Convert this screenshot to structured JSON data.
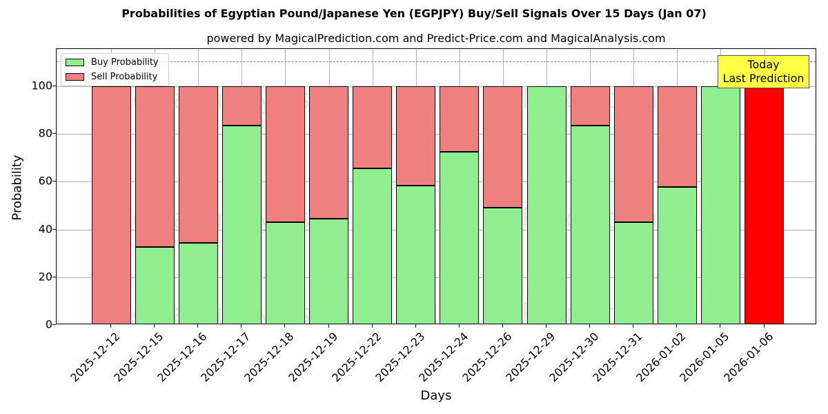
{
  "header": {
    "title": "Probabilities of Egyptian Pound/Japanese Yen (EGPJPY) Buy/Sell Signals Over 15 Days (Jan 07)",
    "subtitle": "powered by MagicalPrediction.com and Predict-Price.com and MagicalAnalysis.com"
  },
  "legend": {
    "buy_label": "Buy Probability",
    "sell_label": "Sell Probability"
  },
  "annotation": {
    "line1": "Today",
    "line2": "Last Prediction"
  },
  "watermarks": [
    "MagicalAnalysis.com",
    "MagicalPrediction.com"
  ],
  "colors": {
    "buy": "#90ee90",
    "sell": "#f08080",
    "today": "#ff0000",
    "annotation_bg": "#ffff44"
  },
  "chart_data": {
    "type": "bar",
    "stacked": true,
    "title": "Probabilities of Egyptian Pound/Japanese Yen (EGPJPY) Buy/Sell Signals Over 15 Days (Jan 07)",
    "subtitle": "powered by MagicalPrediction.com and Predict-Price.com and MagicalAnalysis.com",
    "xlabel": "Days",
    "ylabel": "Probability",
    "ylim": [
      0,
      115
    ],
    "yticks": [
      0,
      20,
      40,
      60,
      80,
      100
    ],
    "grid": true,
    "legend_position": "upper left",
    "reference_line": {
      "y": 110,
      "style": "dashed",
      "color": "#808080"
    },
    "categories": [
      "2025-12-12",
      "2025-12-15",
      "2025-12-16",
      "2025-12-17",
      "2025-12-18",
      "2025-12-19",
      "2025-12-22",
      "2025-12-23",
      "2025-12-24",
      "2025-12-26",
      "2025-12-29",
      "2025-12-30",
      "2025-12-31",
      "2026-01-02",
      "2026-01-05",
      "2026-01-06"
    ],
    "series": [
      {
        "name": "Buy Probability",
        "color": "#90ee90",
        "values": [
          0,
          32.6,
          34.5,
          83.5,
          43.2,
          44.4,
          65.6,
          58.4,
          72.5,
          49.1,
          100,
          83.5,
          43.2,
          57.9,
          100,
          0
        ]
      },
      {
        "name": "Sell Probability",
        "color": "#f08080",
        "values": [
          100,
          67.4,
          65.5,
          16.5,
          56.8,
          55.6,
          34.4,
          41.6,
          27.5,
          50.9,
          0,
          16.5,
          56.8,
          42.1,
          0,
          0
        ]
      },
      {
        "name": "Today / Last Prediction",
        "color": "#ff0000",
        "values": [
          0,
          0,
          0,
          0,
          0,
          0,
          0,
          0,
          0,
          0,
          0,
          0,
          0,
          0,
          0,
          100
        ]
      }
    ],
    "annotations": [
      {
        "text": "Today\nLast Prediction",
        "x": "2026-01-06",
        "y": 110
      }
    ]
  }
}
